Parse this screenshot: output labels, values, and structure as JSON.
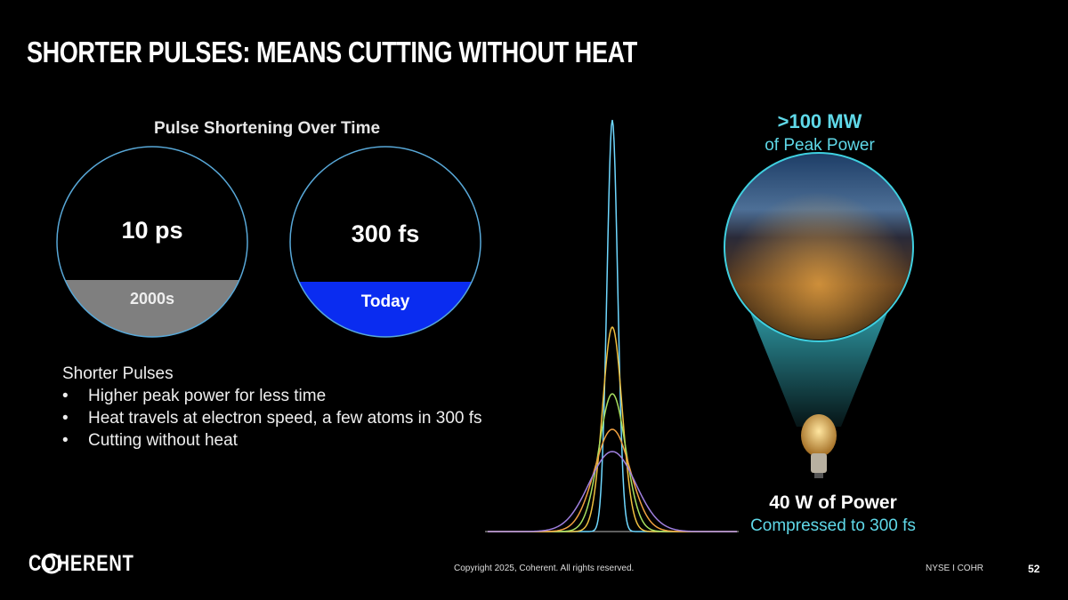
{
  "header": {
    "title": "SHORTER PULSES: MEANS CUTTING WITHOUT HEAT"
  },
  "comparison": {
    "heading": "Pulse Shortening Over Time",
    "circles": [
      {
        "value": "10 ps",
        "era": "2000s"
      },
      {
        "value": "300 fs",
        "era": "Today"
      }
    ]
  },
  "bullets": {
    "heading": "Shorter Pulses",
    "items": [
      "Higher peak power for less time",
      "Heat travels at electron speed, a few atoms in 300 fs",
      "Cutting without heat"
    ]
  },
  "peak": {
    "value": ">100 MW",
    "caption": "of Peak Power"
  },
  "source": {
    "value": "40 W of Power",
    "caption": "Compressed to 300 fs"
  },
  "footer": {
    "logo": "COHERENT",
    "copyright": "Copyright 2025, Coherent. All rights reserved.",
    "ticker": "NYSE I COHR",
    "page": "52"
  }
}
